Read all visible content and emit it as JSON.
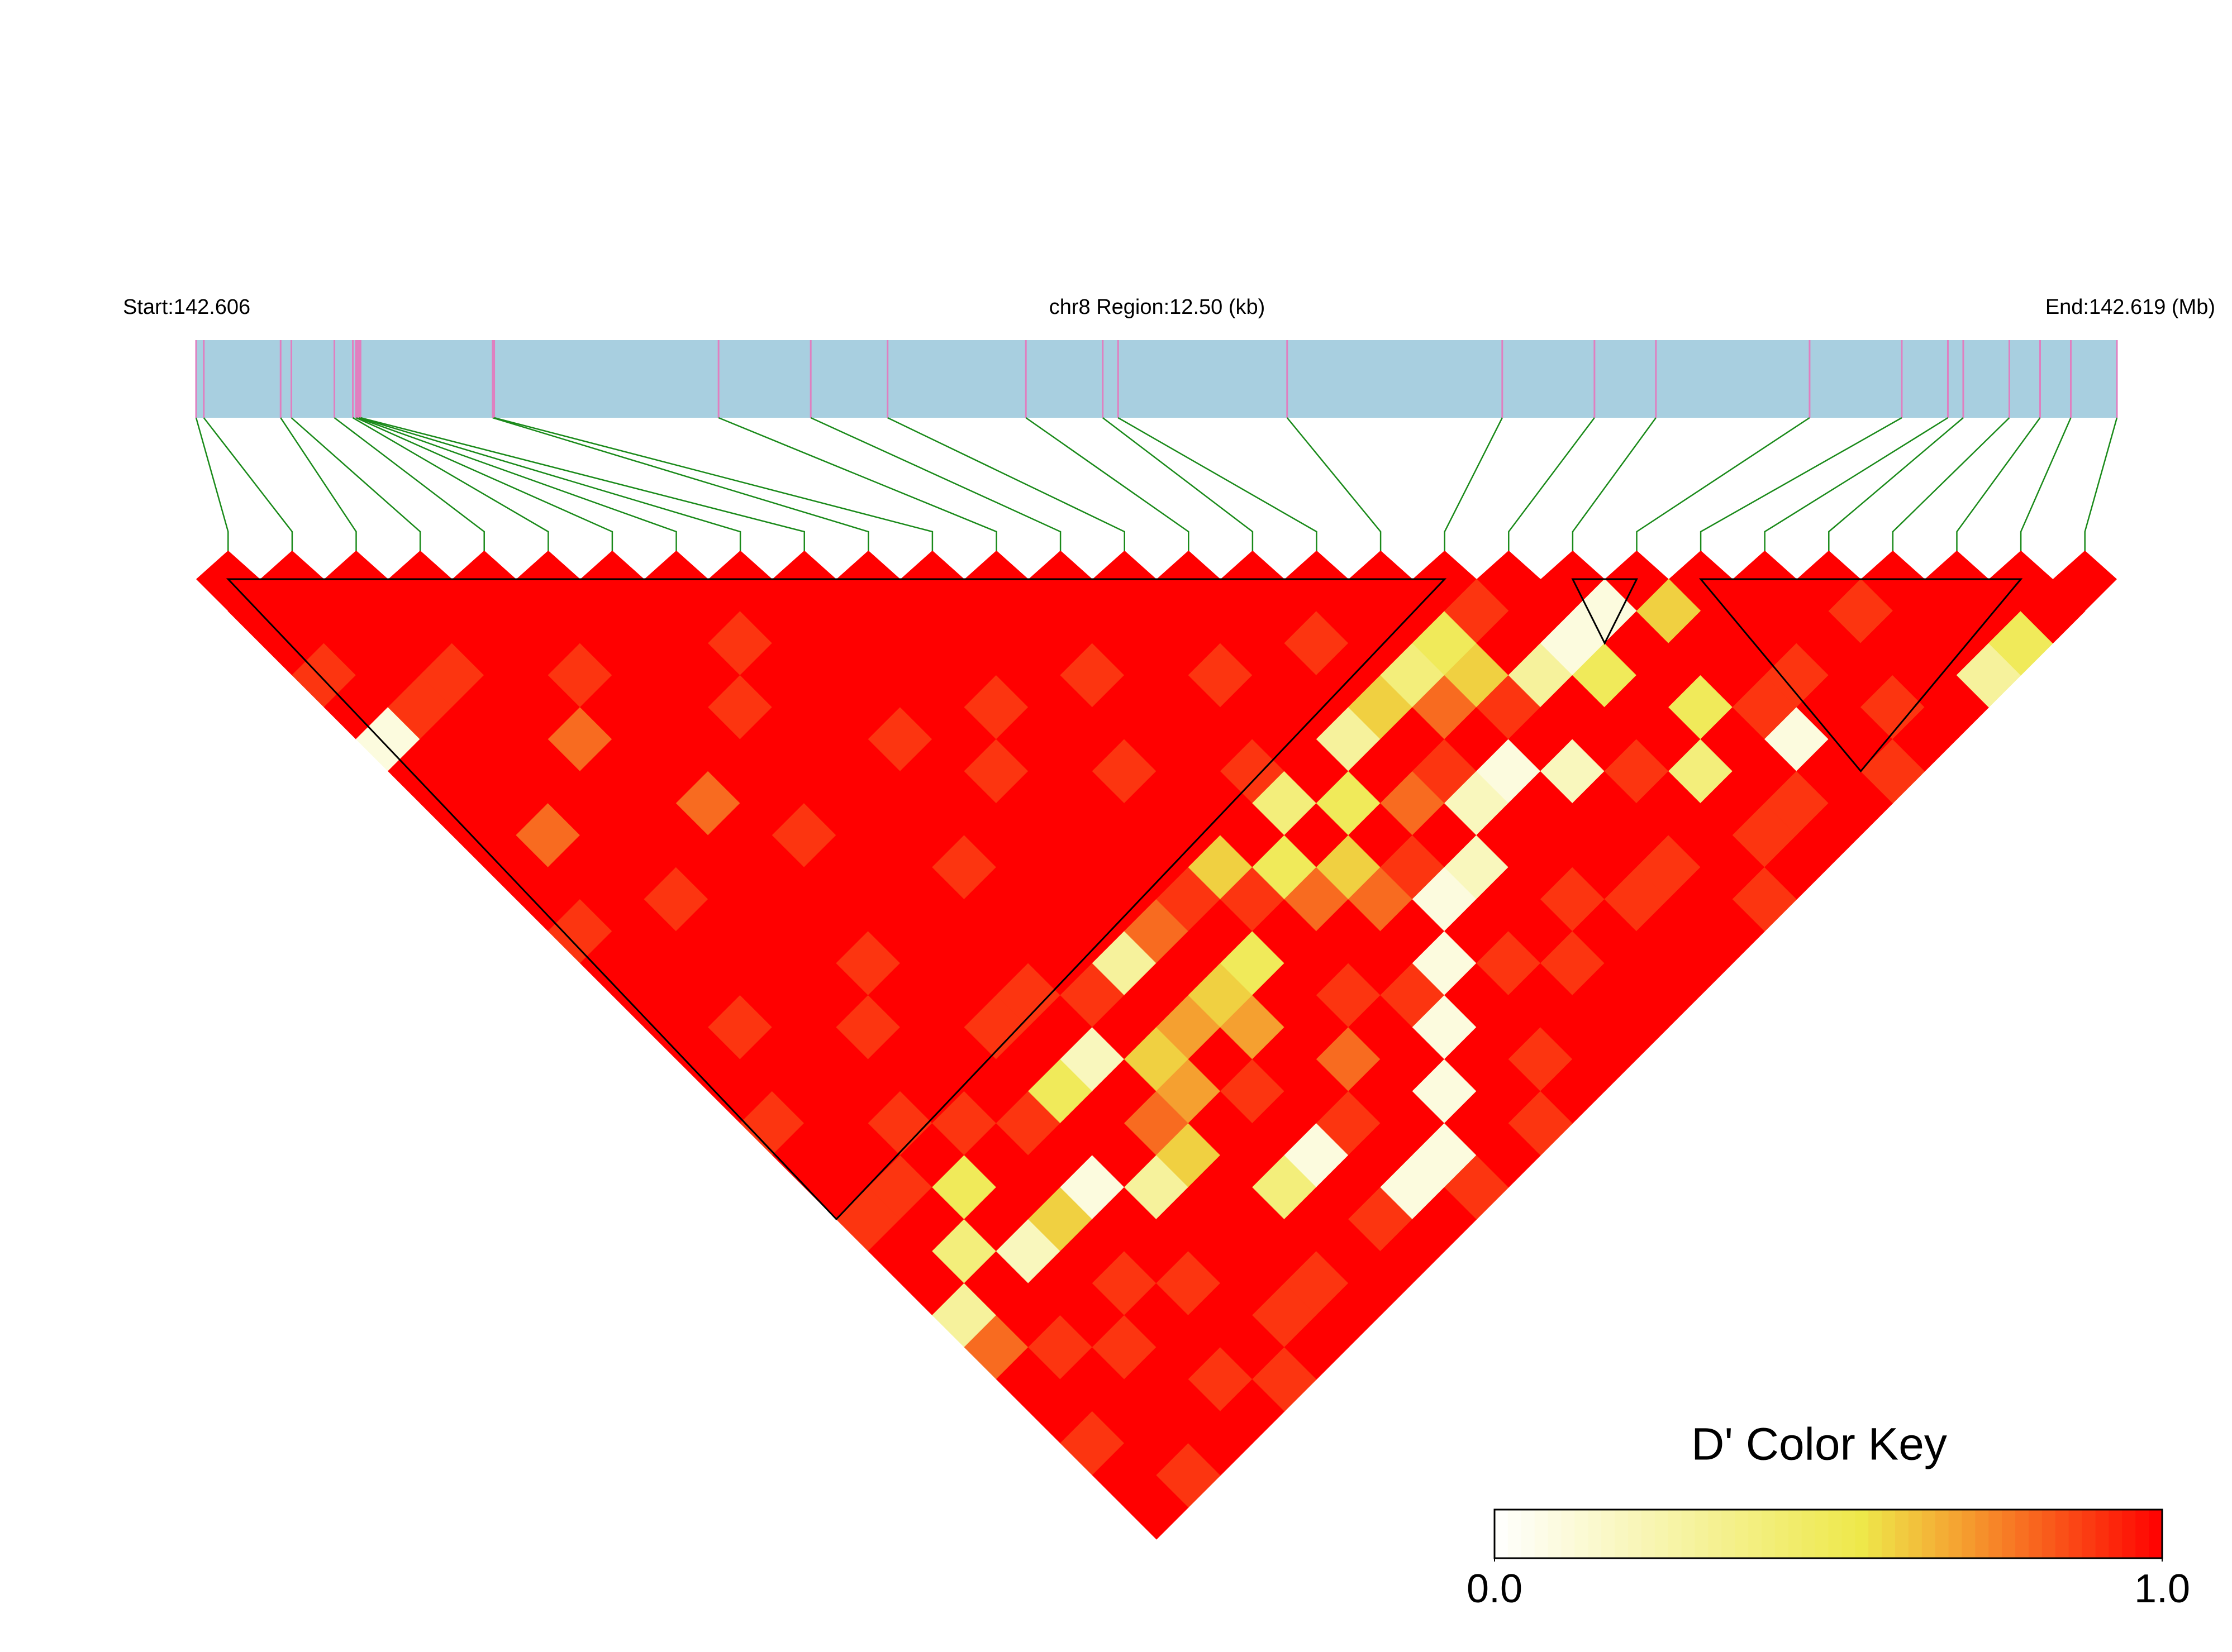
{
  "chart_data": {
    "type": "ld_heatmap",
    "start_label": "Start:142.606",
    "region_label": "chr8 Region:12.50 (kb)",
    "end_label": "End:142.619 (Mb)",
    "region_kb": [
      0,
      12.5
    ],
    "snp_positions_kb": [
      0,
      0.05,
      0.55,
      0.62,
      0.9,
      1.02,
      1.04,
      1.05,
      1.06,
      1.07,
      1.93,
      1.94,
      3.4,
      4.0,
      4.5,
      5.4,
      5.9,
      6.0,
      7.1,
      8.5,
      9.1,
      9.5,
      10.5,
      11.1,
      11.4,
      11.5,
      11.8,
      12.0,
      12.2,
      12.5
    ],
    "matrix": [
      [
        1,
        1,
        0.9,
        1,
        0.1,
        1,
        1,
        1,
        1,
        1,
        0.9,
        1,
        1,
        1,
        1,
        1,
        0.9,
        1,
        1,
        0.9,
        1,
        1,
        0.3,
        0.8,
        1,
        1,
        0.9,
        1,
        1
      ],
      [
        1,
        1,
        1,
        0.9,
        1,
        1,
        1,
        0.8,
        1,
        1,
        1,
        1,
        1,
        0.9,
        1,
        1,
        1,
        1,
        0.9,
        1,
        0.4,
        1,
        1,
        0.9,
        1,
        1,
        1,
        0.9
      ],
      [
        1,
        1,
        0.9,
        1,
        1,
        1,
        1,
        1,
        1,
        0.9,
        1,
        1,
        1,
        1,
        1,
        1,
        0.9,
        1,
        0.5,
        1,
        0.2,
        1,
        1,
        0.9,
        1,
        1,
        1
      ],
      [
        1,
        1,
        1,
        1,
        0.8,
        1,
        1,
        1,
        1,
        1,
        1,
        1,
        1,
        0.9,
        1,
        1,
        0.9,
        1,
        1,
        0.6,
        1,
        0.9,
        1,
        1,
        0.9,
        1
      ],
      [
        1,
        1,
        0.9,
        1,
        1,
        1,
        0.8,
        1,
        1,
        1,
        1,
        0.9,
        1,
        1,
        1,
        1,
        0.9,
        1,
        0.1,
        1,
        1,
        0.9,
        1,
        1,
        0.9
      ],
      [
        1,
        1,
        1,
        1,
        1,
        1,
        1,
        0.9,
        1,
        1,
        1,
        1,
        1,
        0.9,
        1,
        0.5,
        1,
        1,
        0.3,
        1,
        1,
        1,
        0.9,
        1
      ],
      [
        1,
        1,
        1,
        0.9,
        1,
        1,
        1,
        1,
        1,
        1,
        1,
        1,
        0.9,
        1,
        0.2,
        1,
        0.8,
        0.6,
        1,
        1,
        1,
        0.9,
        1
      ],
      [
        1,
        0.9,
        1,
        1,
        1,
        1,
        1,
        1,
        0.9,
        1,
        1,
        1,
        0.9,
        1,
        0.6,
        0.7,
        1,
        1,
        0.4,
        1,
        1,
        1
      ],
      [
        1,
        1,
        1,
        1,
        0.9,
        1,
        1,
        1,
        1,
        1,
        1,
        0.3,
        1,
        0.7,
        1,
        0.9,
        1,
        0.1,
        1,
        0.9,
        1
      ],
      [
        1,
        1,
        1,
        1,
        1,
        0.9,
        1,
        1,
        1,
        1,
        0.8,
        1,
        0.6,
        0.7,
        1,
        1,
        0.9,
        1,
        0.1,
        1
      ],
      [
        1,
        1,
        1,
        0.9,
        1,
        1,
        1,
        1,
        1,
        0.9,
        1,
        0.5,
        1,
        1,
        0.8,
        1,
        1,
        0.1,
        0.9
      ],
      [
        1,
        1,
        1,
        1,
        1,
        0.9,
        1,
        1,
        0.6,
        0.9,
        1,
        1,
        0.9,
        1,
        1,
        0.1,
        1,
        1
      ],
      [
        1,
        1,
        0.9,
        1,
        1,
        1,
        1,
        1,
        0.5,
        0.8,
        1,
        1,
        0.9,
        0.1,
        1,
        1,
        0.9
      ],
      [
        1,
        1,
        1,
        1,
        1,
        0.9,
        0.4,
        1,
        0.6,
        0.8,
        1,
        0.1,
        1,
        1,
        0.9,
        1
      ],
      [
        1,
        1,
        0.9,
        1,
        1,
        1,
        0.5,
        1,
        0.9,
        0.1,
        1,
        0.9,
        1,
        1,
        1
      ],
      [
        1,
        1,
        1,
        1,
        0.3,
        1,
        0.8,
        1,
        0.2,
        1,
        1,
        0.9,
        1,
        1
      ],
      [
        1,
        0.9,
        1,
        0.6,
        1,
        0.9,
        0.2,
        1,
        1,
        0.9,
        1,
        1,
        1
      ],
      [
        1,
        1,
        0.4,
        0.8,
        1,
        0.1,
        1,
        1,
        1,
        0.9,
        1,
        1
      ],
      [
        1,
        0.5,
        0.6,
        0.9,
        1,
        0.2,
        1,
        1,
        0.9,
        1,
        1
      ],
      [
        0.9,
        1,
        0.3,
        1,
        1,
        0.9,
        1,
        1,
        1,
        0.9
      ],
      [
        1,
        0.1,
        0.5,
        1,
        1,
        0.4,
        1,
        0.9,
        1
      ],
      [
        0.1,
        1,
        1,
        0.5,
        1,
        1,
        0.9,
        1
      ],
      [
        0.6,
        1,
        1,
        0.9,
        0.1,
        1,
        1
      ],
      [
        1,
        1,
        0.9,
        1,
        1,
        0.9
      ],
      [
        1,
        1,
        1,
        0.9,
        1
      ],
      [
        0.9,
        1,
        1,
        1
      ],
      [
        1,
        1,
        0.3
      ],
      [
        1,
        0.5
      ],
      [
        1
      ]
    ],
    "blocks": [
      [
        0,
        19
      ],
      [
        21,
        22
      ],
      [
        23,
        28
      ]
    ],
    "color_key_title": "D' Color Key",
    "color_stops": [
      {
        "value": 0,
        "color": "#ffffff"
      },
      {
        "value": 0.55,
        "color": "#eee84a"
      },
      {
        "value": 0.7,
        "color": "#f5a030"
      },
      {
        "value": 1,
        "color": "#ff0000"
      }
    ],
    "color_key_lim": [
      0,
      1
    ],
    "color_key_ticks": [
      {
        "value": 0,
        "label": "0.0"
      },
      {
        "value": 1,
        "label": "1.0"
      }
    ],
    "bar_color": "#a8cfe0",
    "snp_tick_color": "#e07fc0",
    "connector_color": "#1a8a1a"
  }
}
